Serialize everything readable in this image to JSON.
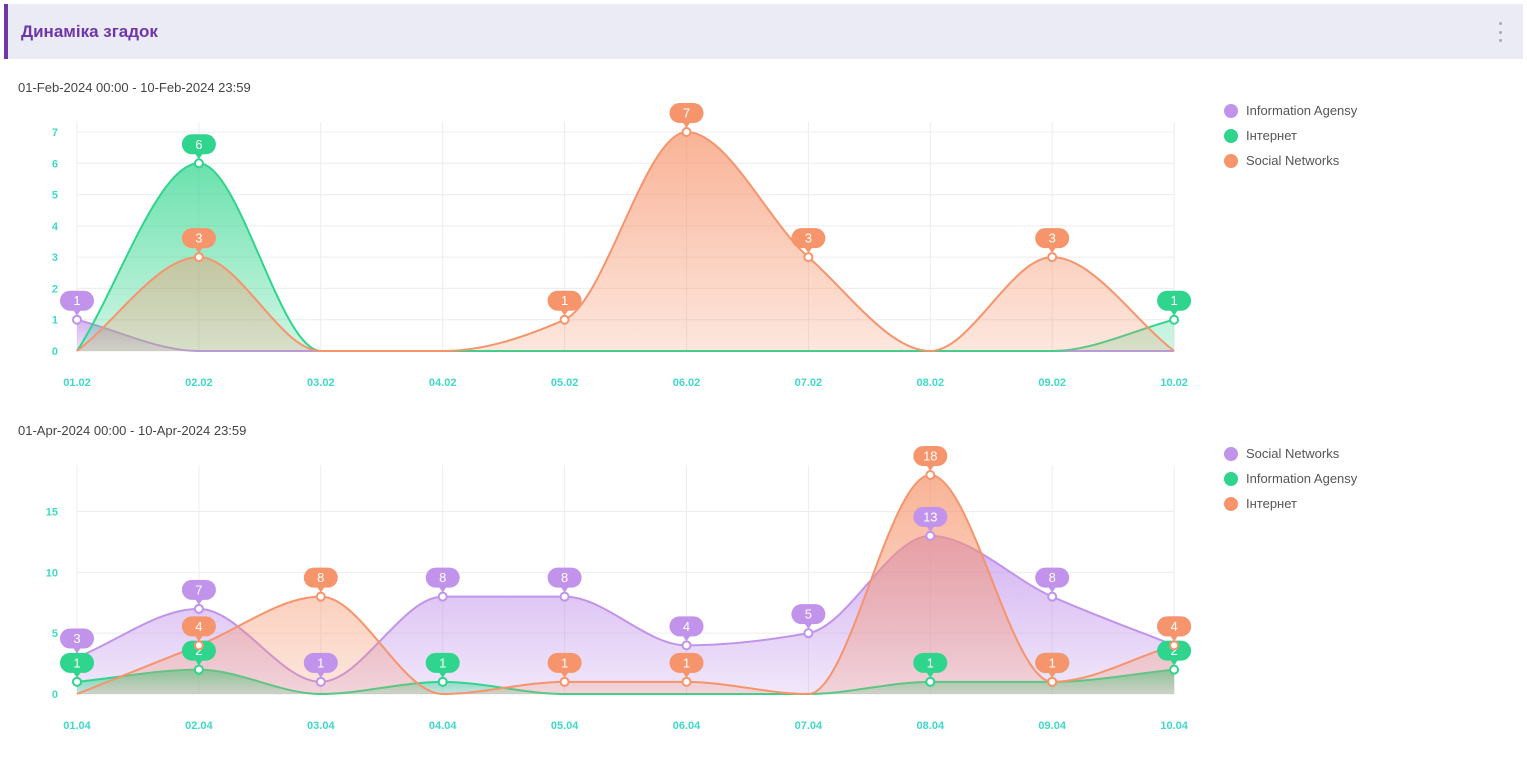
{
  "header": {
    "title": "Динаміка згадок"
  },
  "colors": {
    "purple": "#c193eb",
    "green": "#2fd58c",
    "orange": "#f6946c",
    "axis": "#3fd9c8",
    "accent": "#6f36a8"
  },
  "chart_data": [
    {
      "type": "area",
      "range_label": "01-Feb-2024 00:00 - 10-Feb-2024 23:59",
      "categories": [
        "01.02",
        "02.02",
        "03.02",
        "04.02",
        "05.02",
        "06.02",
        "07.02",
        "08.02",
        "09.02",
        "10.02"
      ],
      "ylim": [
        0,
        7
      ],
      "yticks": [
        0,
        1,
        2,
        3,
        4,
        5,
        6,
        7
      ],
      "grid": true,
      "legend_position": "right",
      "series": [
        {
          "name": "Information Agensy",
          "color": "#c193eb",
          "values": [
            1,
            0,
            0,
            0,
            0,
            0,
            0,
            0,
            0,
            0
          ]
        },
        {
          "name": "Інтернет",
          "color": "#2fd58c",
          "values": [
            0,
            6,
            0,
            0,
            0,
            0,
            0,
            0,
            0,
            1
          ]
        },
        {
          "name": "Social Networks",
          "color": "#f6946c",
          "values": [
            0,
            3,
            0,
            0,
            1,
            7,
            3,
            0,
            3,
            0
          ]
        }
      ]
    },
    {
      "type": "area",
      "range_label": "01-Apr-2024 00:00 - 10-Apr-2024 23:59",
      "categories": [
        "01.04",
        "02.04",
        "03.04",
        "04.04",
        "05.04",
        "06.04",
        "07.04",
        "08.04",
        "09.04",
        "10.04"
      ],
      "ylim": [
        0,
        18
      ],
      "yticks": [
        0,
        5,
        10,
        15
      ],
      "grid": true,
      "legend_position": "right",
      "series": [
        {
          "name": "Social Networks",
          "color": "#c193eb",
          "values": [
            3,
            7,
            1,
            8,
            8,
            4,
            5,
            13,
            8,
            4
          ]
        },
        {
          "name": "Information Agensy",
          "color": "#2fd58c",
          "values": [
            1,
            2,
            0,
            1,
            0,
            0,
            0,
            1,
            1,
            2
          ]
        },
        {
          "name": "Інтернет",
          "color": "#f6946c",
          "values": [
            0,
            4,
            8,
            0,
            1,
            1,
            0,
            18,
            1,
            4
          ]
        }
      ]
    }
  ]
}
